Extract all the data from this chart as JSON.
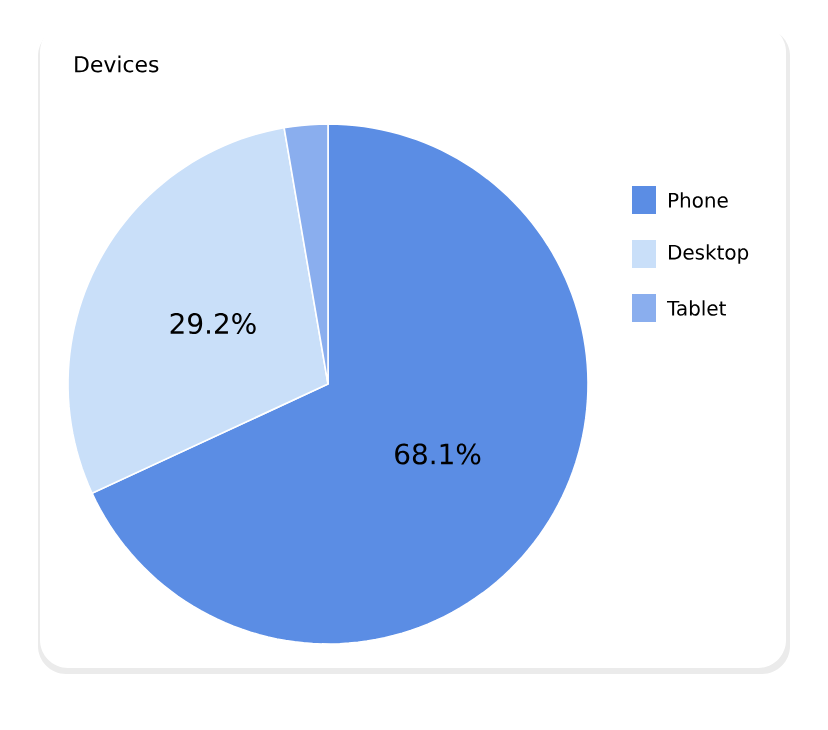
{
  "chart_data": {
    "type": "pie",
    "title": "Devices",
    "categories": [
      "Phone",
      "Desktop",
      "Tablet"
    ],
    "values": [
      68.1,
      29.2,
      2.7
    ],
    "colors": [
      "#5b8de4",
      "#c9dff9",
      "#8aaeee"
    ],
    "value_labels": [
      "68.1%",
      "29.2%",
      null
    ],
    "legend": "right"
  }
}
